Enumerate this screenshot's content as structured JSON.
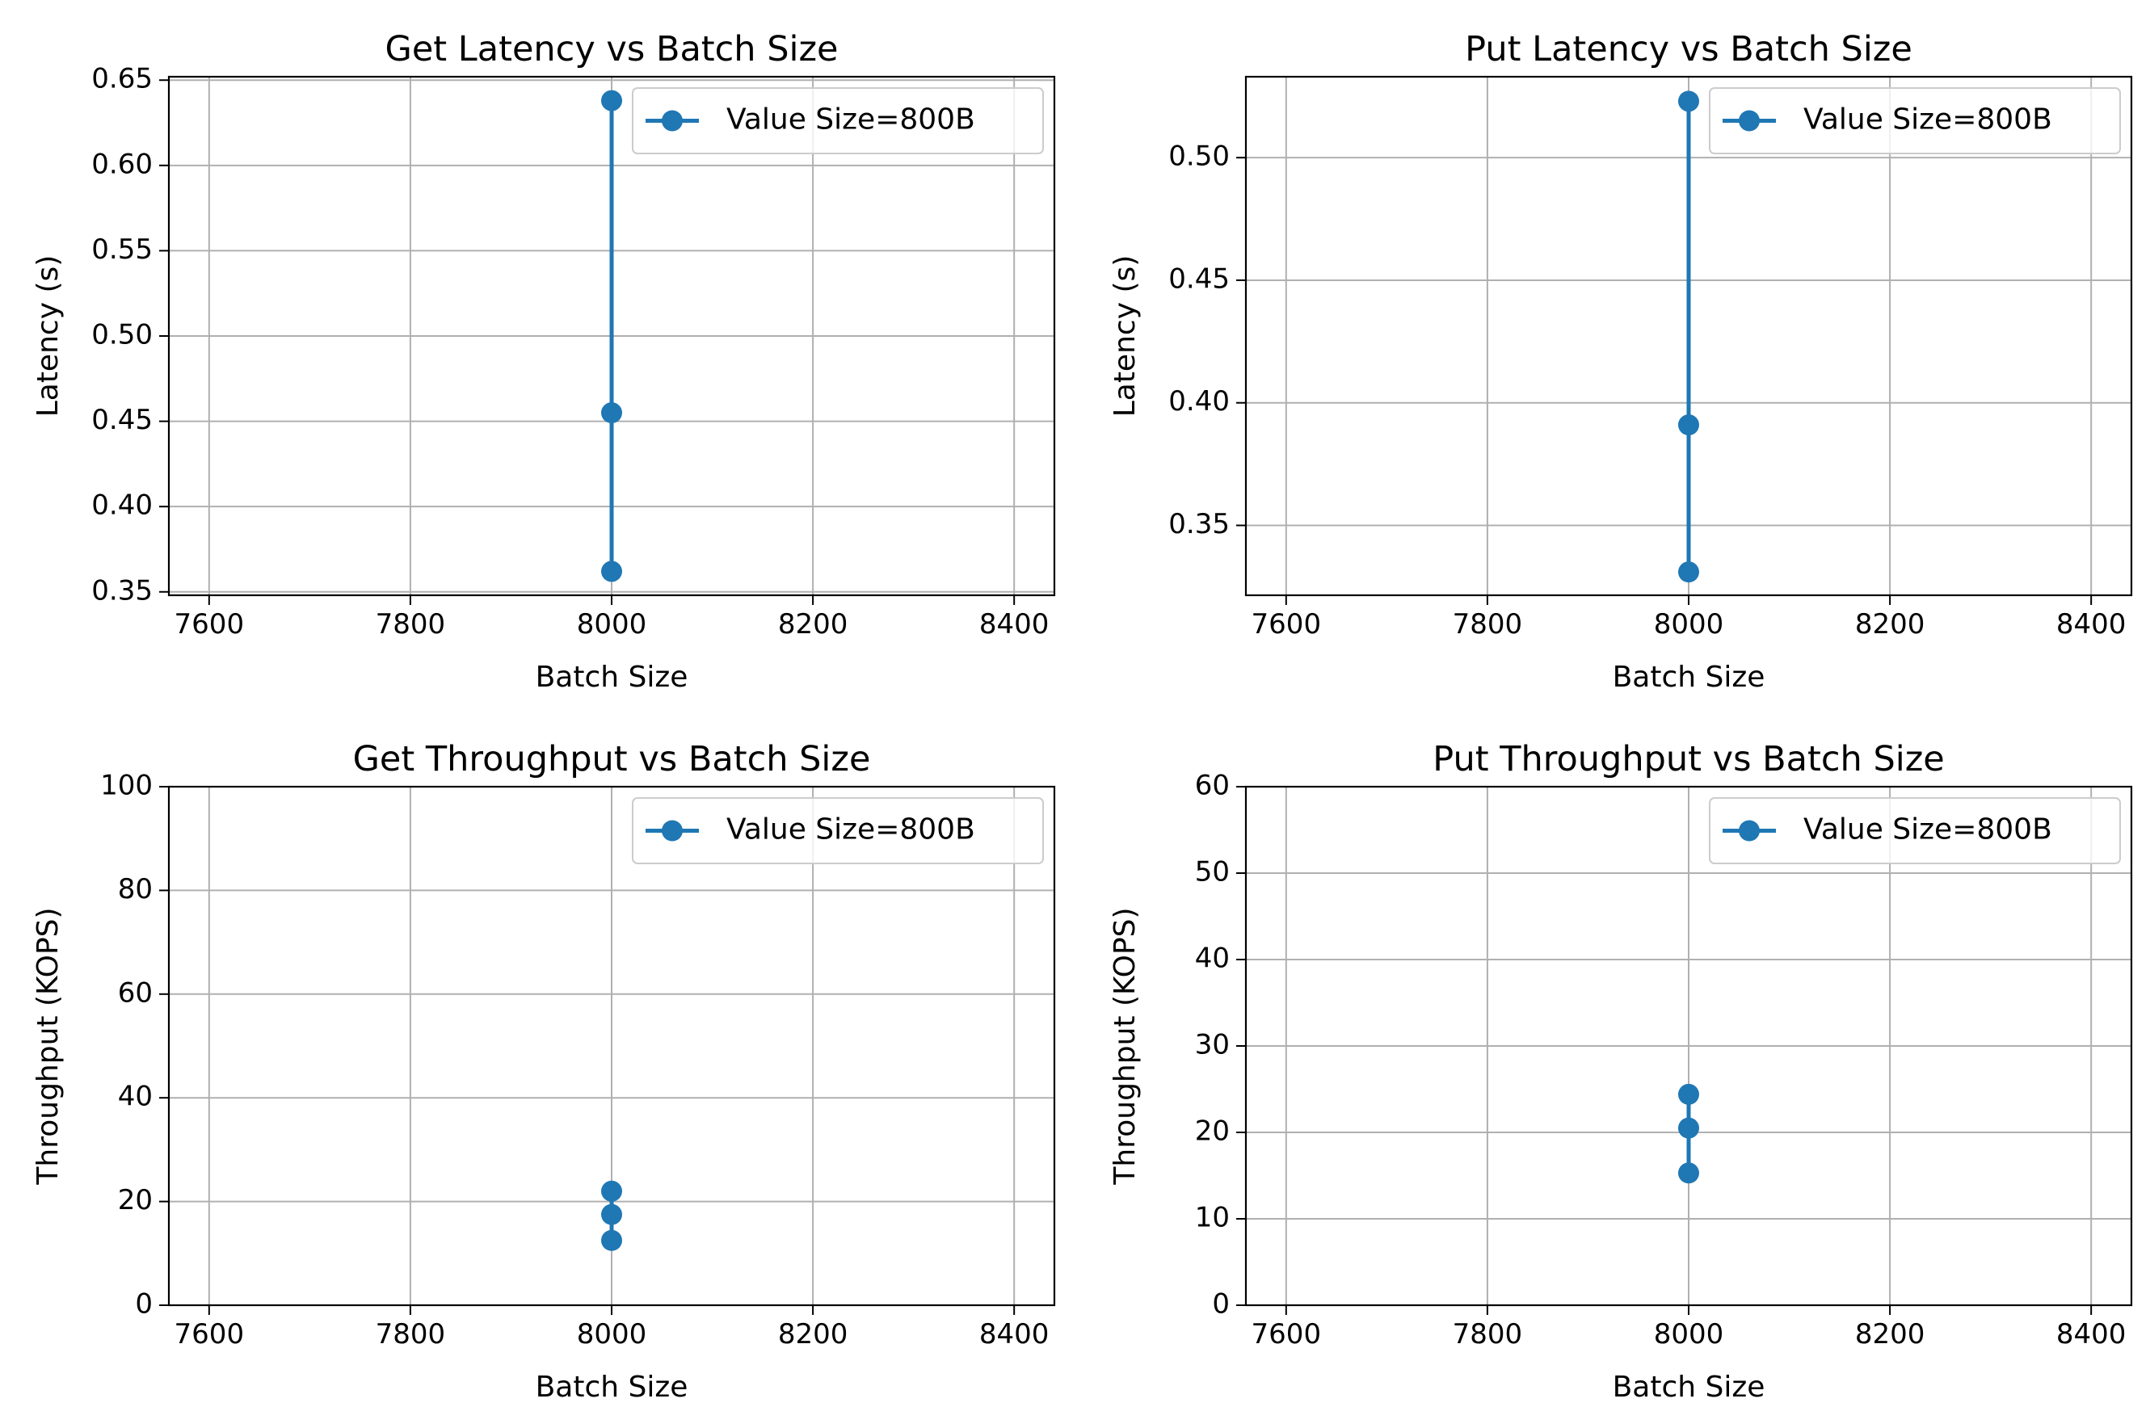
{
  "chart_data": [
    {
      "type": "line",
      "title": "Get Latency vs Batch Size",
      "xlabel": "Batch Size",
      "ylabel": "Latency (s)",
      "xlim": [
        7560,
        8440
      ],
      "ylim": [
        0.348,
        0.652
      ],
      "xticks": [
        7600,
        7800,
        8000,
        8200,
        8400
      ],
      "xtick_labels": [
        "7600",
        "7800",
        "8000",
        "8200",
        "8400"
      ],
      "yticks": [
        0.35,
        0.4,
        0.45,
        0.5,
        0.55,
        0.6,
        0.65
      ],
      "ytick_labels": [
        "0.35",
        "0.40",
        "0.45",
        "0.50",
        "0.55",
        "0.60",
        "0.65"
      ],
      "grid": true,
      "legend_position": "upper right",
      "series": [
        {
          "name": "Value Size=800B",
          "color": "#1f77b4",
          "marker": "circle",
          "connected": true,
          "x": [
            8000,
            8000,
            8000
          ],
          "y": [
            0.638,
            0.455,
            0.362
          ]
        }
      ]
    },
    {
      "type": "line",
      "title": "Put Latency vs Batch Size",
      "xlabel": "Batch Size",
      "ylabel": "Latency (s)",
      "xlim": [
        7560,
        8440
      ],
      "ylim": [
        0.3215,
        0.533
      ],
      "xticks": [
        7600,
        7800,
        8000,
        8200,
        8400
      ],
      "xtick_labels": [
        "7600",
        "7800",
        "8000",
        "8200",
        "8400"
      ],
      "yticks": [
        0.35,
        0.4,
        0.45,
        0.5
      ],
      "ytick_labels": [
        "0.35",
        "0.40",
        "0.45",
        "0.50"
      ],
      "grid": true,
      "legend_position": "upper right",
      "series": [
        {
          "name": "Value Size=800B",
          "color": "#1f77b4",
          "marker": "circle",
          "connected": true,
          "x": [
            8000,
            8000,
            8000
          ],
          "y": [
            0.523,
            0.391,
            0.331
          ]
        }
      ]
    },
    {
      "type": "scatter",
      "title": "Get Throughput vs Batch Size",
      "xlabel": "Batch Size",
      "ylabel": "Throughput (KOPS)",
      "xlim": [
        7560,
        8440
      ],
      "ylim": [
        0,
        100
      ],
      "xticks": [
        7600,
        7800,
        8000,
        8200,
        8400
      ],
      "xtick_labels": [
        "7600",
        "7800",
        "8000",
        "8200",
        "8400"
      ],
      "yticks": [
        0,
        20,
        40,
        60,
        80,
        100
      ],
      "ytick_labels": [
        "0",
        "20",
        "40",
        "60",
        "80",
        "100"
      ],
      "grid": true,
      "legend_position": "upper right",
      "series": [
        {
          "name": "Value Size=800B",
          "color": "#1f77b4",
          "marker": "circle",
          "connected": true,
          "x": [
            8000,
            8000,
            8000
          ],
          "y": [
            22.0,
            17.5,
            12.5
          ]
        }
      ]
    },
    {
      "type": "line",
      "title": "Put Throughput vs Batch Size",
      "xlabel": "Batch Size",
      "ylabel": "Throughput (KOPS)",
      "xlim": [
        7560,
        8440
      ],
      "ylim": [
        0,
        60
      ],
      "xticks": [
        7600,
        7800,
        8000,
        8200,
        8400
      ],
      "xtick_labels": [
        "7600",
        "7800",
        "8000",
        "8200",
        "8400"
      ],
      "yticks": [
        0,
        10,
        20,
        30,
        40,
        50,
        60
      ],
      "ytick_labels": [
        "0",
        "10",
        "20",
        "30",
        "40",
        "50",
        "60"
      ],
      "grid": true,
      "legend_position": "upper right",
      "series": [
        {
          "name": "Value Size=800B",
          "color": "#1f77b4",
          "marker": "circle",
          "connected": true,
          "x": [
            8000,
            8000,
            8000
          ],
          "y": [
            24.4,
            20.5,
            15.3
          ]
        }
      ]
    }
  ]
}
